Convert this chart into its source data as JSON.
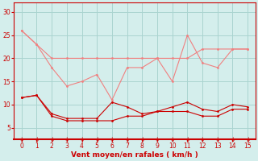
{
  "x": [
    0,
    1,
    2,
    3,
    4,
    5,
    6,
    7,
    8,
    9,
    10,
    11,
    12,
    13,
    14,
    15
  ],
  "line_light1": [
    26,
    23,
    20,
    20,
    20,
    20,
    20,
    20,
    20,
    20,
    20,
    20,
    22,
    22,
    22,
    22
  ],
  "line_light2": [
    26,
    23,
    18,
    14,
    15,
    16.5,
    11,
    18,
    18,
    20,
    15,
    25,
    19,
    18,
    22,
    22
  ],
  "line_dark1": [
    11.5,
    12,
    8,
    7,
    7,
    7,
    10.5,
    9.5,
    8,
    8.5,
    9.5,
    10.5,
    9,
    8.5,
    10,
    9.5
  ],
  "line_dark2": [
    11.5,
    12,
    7.5,
    6.5,
    6.5,
    6.5,
    6.5,
    7.5,
    7.5,
    8.5,
    8.5,
    8.5,
    7.5,
    7.5,
    9,
    9
  ],
  "xlabel": "Vent moyen/en rafales ( km/h )",
  "yticks": [
    5,
    10,
    15,
    20,
    25,
    30
  ],
  "xticks": [
    0,
    1,
    2,
    3,
    4,
    5,
    6,
    7,
    8,
    9,
    10,
    11,
    12,
    13,
    14,
    15
  ],
  "ylim": [
    2.5,
    32
  ],
  "xlim": [
    -0.5,
    15.5
  ],
  "bg_color": "#d4eeec",
  "grid_color": "#aad4d0",
  "color_light": "#f08080",
  "color_dark": "#cc0000",
  "axis_color": "#cc0000",
  "label_color": "#cc0000",
  "arrow_char": "↓"
}
